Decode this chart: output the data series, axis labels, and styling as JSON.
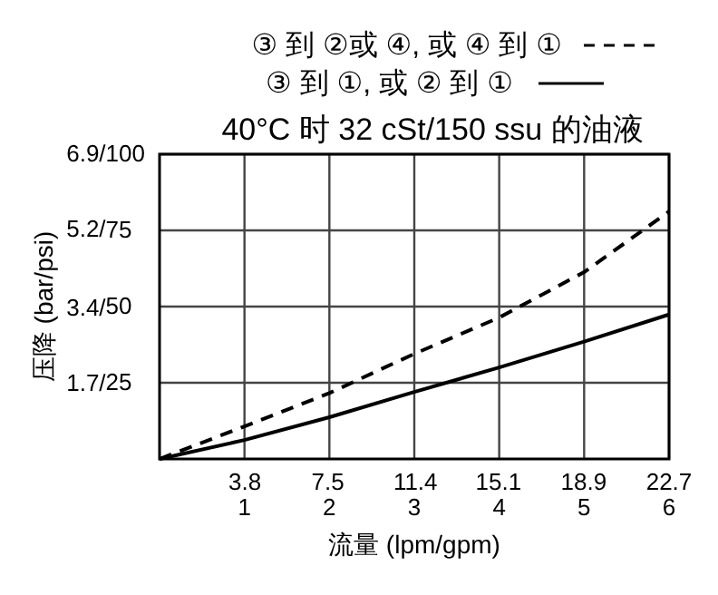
{
  "chart_data": {
    "type": "line",
    "title": "40°C 时 32 cSt/150 ssu 的油液",
    "xlabel": "流量 (lpm/gpm)",
    "ylabel": "压降 (bar/psi)",
    "legend": "top",
    "grid": true,
    "marker": "none",
    "xlim": [
      0,
      6
    ],
    "xticks": [
      1,
      2,
      3,
      4,
      5,
      6
    ],
    "x2lim": [
      0,
      22.7
    ],
    "x2ticks": [
      3.8,
      7.5,
      11.4,
      15.1,
      18.9,
      22.7
    ],
    "ylim": [
      0,
      6.9
    ],
    "yticks": [
      {
        "value": 1.7,
        "label": "1.7/"
      },
      {
        "value": 3.4,
        "label": "3.4/"
      },
      {
        "value": 5.2,
        "label": "5.2/"
      },
      {
        "value": 6.9,
        "label": "6.9/"
      }
    ],
    "y2lim": [
      0,
      100
    ],
    "y2ticks": [
      25,
      50,
      75,
      100
    ],
    "x": [
      0,
      1,
      2,
      3,
      4,
      5,
      6
    ],
    "series": [
      {
        "name": "③ 到 ②或 ④, 或 ④ 到 ①",
        "color": "#000000",
        "line_style": "dashed",
        "axis": "y2",
        "values": [
          0,
          10.7,
          21.6,
          34.5,
          46.4,
          61.3,
          81.2
        ]
      },
      {
        "name": "③ 到 ①, 或 ② 到 ①",
        "color": "#000000",
        "line_style": "solid",
        "axis": "y2",
        "values": [
          0,
          6.2,
          13.7,
          22.0,
          30.0,
          38.5,
          47.4
        ]
      }
    ]
  }
}
